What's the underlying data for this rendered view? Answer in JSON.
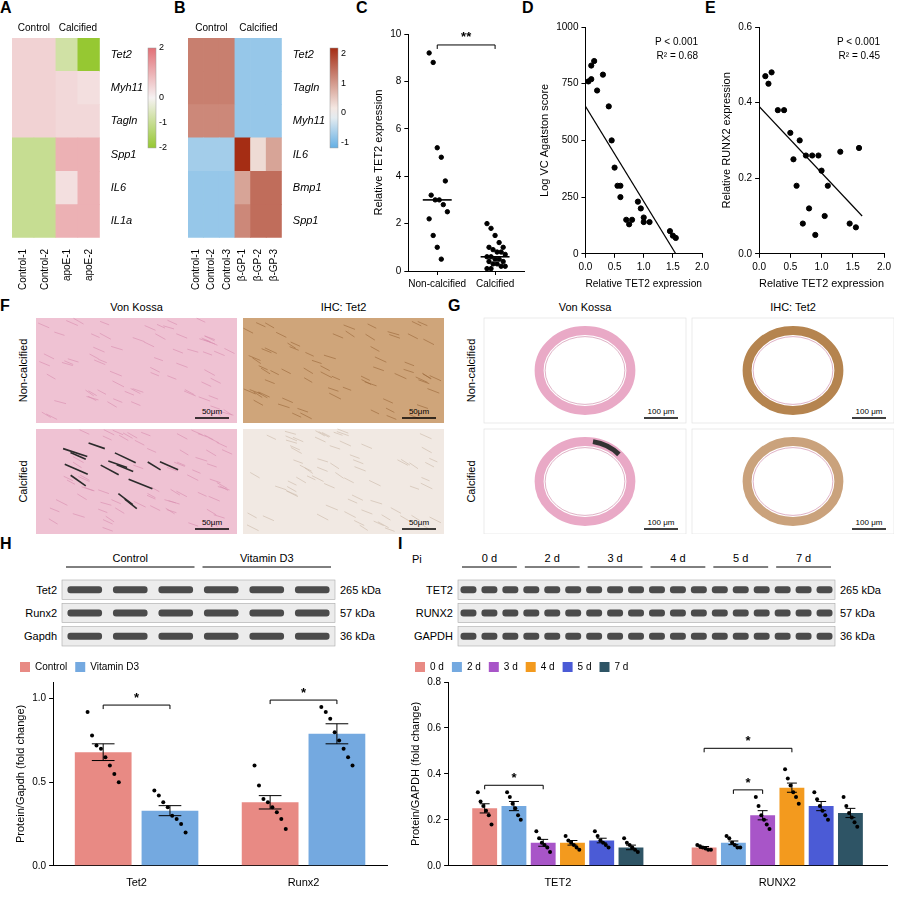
{
  "chart_data": [
    {
      "panel": "A",
      "type": "heatmap",
      "column_groups": [
        "Control",
        "Calcified"
      ],
      "categories": [
        "Control-1",
        "Control-2",
        "apoE-1",
        "apoE-2"
      ],
      "rows": [
        "Tet2",
        "Myh11",
        "Tagln",
        "Spp1",
        "IL6",
        "IL1a"
      ],
      "cells": [
        [
          0.5,
          0.5,
          -0.8,
          -2
        ],
        [
          0.5,
          0.5,
          0.4,
          0.3
        ],
        [
          0.5,
          0.5,
          0.4,
          0.4
        ],
        [
          -1,
          -1,
          1,
          1
        ],
        [
          -1,
          -1,
          0.3,
          1
        ],
        [
          -1,
          -1,
          1,
          1
        ]
      ],
      "colorbar": {
        "lim": [
          -2,
          2
        ],
        "ticks": [
          2,
          0,
          -1,
          -2
        ]
      }
    },
    {
      "panel": "B",
      "type": "heatmap",
      "column_groups": [
        "Control",
        "Calcified"
      ],
      "categories": [
        "Control-1",
        "Control-2",
        "Control-3",
        "β-GP-1",
        "β-GP-2",
        "β-GP-3"
      ],
      "rows": [
        "Tet2",
        "Tagln",
        "Myh11",
        "IL6",
        "Bmp1",
        "Spp1"
      ],
      "cells": [
        [
          1.3,
          1.3,
          1.3,
          -0.8,
          -0.8,
          -0.8
        ],
        [
          1.3,
          1.3,
          1.3,
          -0.8,
          -0.8,
          -0.8
        ],
        [
          1.2,
          1.2,
          1.2,
          -0.8,
          -0.8,
          -0.8
        ],
        [
          -0.7,
          -0.7,
          -0.7,
          2.2,
          0.3,
          0.9
        ],
        [
          -0.8,
          -0.8,
          -0.8,
          0.9,
          1.5,
          1.5
        ],
        [
          -0.8,
          -0.8,
          -0.8,
          1.2,
          1.5,
          1.5
        ]
      ],
      "colorbar": {
        "lim": [
          -1.2,
          2.2
        ],
        "ticks": [
          2,
          1,
          0,
          -1
        ]
      }
    },
    {
      "panel": "C",
      "type": "dot",
      "categories": [
        "Non-calcified",
        "Calcified"
      ],
      "values": [
        [
          9.2,
          8.8,
          5.2,
          4.8,
          3.8,
          3.2,
          3.0,
          3.0,
          2.8,
          2.5,
          2.2,
          1.5,
          1.0,
          0.5
        ],
        [
          2.0,
          1.8,
          1.5,
          1.2,
          1.0,
          1.0,
          0.9,
          0.8,
          0.8,
          0.7,
          0.6,
          0.6,
          0.5,
          0.5,
          0.4,
          0.4,
          0.3,
          0.3,
          0.2,
          0.2,
          0.1,
          0.1
        ]
      ],
      "medians": [
        3.0,
        0.6
      ],
      "ylim": [
        0,
        10
      ],
      "yticks": [
        0,
        2,
        4,
        6,
        8,
        10
      ],
      "y_label": "Relative TET2 expression",
      "grid": false,
      "annotations": [
        {
          "text": "**",
          "between": [
            0,
            1
          ]
        }
      ]
    },
    {
      "panel": "D",
      "type": "scatter",
      "x": [
        0.05,
        0.1,
        0.1,
        0.15,
        0.2,
        0.3,
        0.4,
        0.45,
        0.5,
        0.55,
        0.6,
        0.6,
        0.7,
        0.75,
        0.8,
        0.9,
        0.95,
        1.0,
        1.0,
        1.1,
        1.45,
        1.5,
        1.55
      ],
      "values": [
        760,
        770,
        830,
        850,
        720,
        790,
        650,
        500,
        380,
        300,
        300,
        250,
        150,
        130,
        150,
        230,
        200,
        160,
        140,
        140,
        100,
        80,
        70
      ],
      "fit_line": {
        "x": [
          0,
          1.55
        ],
        "values": [
          650,
          0
        ]
      },
      "xlim": [
        0,
        2
      ],
      "xticks": [
        {
          "value": 0,
          "label": "0.0"
        },
        0.5,
        {
          "value": 1,
          "label": "1.0"
        },
        1.5,
        {
          "value": 2,
          "label": "2.0"
        }
      ],
      "ylim": [
        0,
        1000
      ],
      "yticks": [
        0,
        250,
        500,
        750,
        1000
      ],
      "x_label": "Relative TET2 expression",
      "y_label": "Log VC Agatston score",
      "grid": false,
      "annotations": [
        "P < 0.001",
        "R² = 0.68"
      ]
    },
    {
      "panel": "E",
      "type": "scatter",
      "x": [
        0.1,
        0.15,
        0.2,
        0.3,
        0.4,
        0.5,
        0.55,
        0.6,
        0.65,
        0.7,
        0.75,
        0.8,
        0.85,
        0.9,
        0.95,
        1.0,
        1.05,
        1.1,
        1.3,
        1.45,
        1.55,
        1.6
      ],
      "values": [
        0.47,
        0.45,
        0.48,
        0.38,
        0.38,
        0.32,
        0.25,
        0.18,
        0.3,
        0.08,
        0.26,
        0.12,
        0.26,
        0.05,
        0.26,
        0.22,
        0.1,
        0.18,
        0.27,
        0.08,
        0.07,
        0.28
      ],
      "fit_line": {
        "x": [
          0,
          1.65
        ],
        "values": [
          0.39,
          0.1
        ]
      },
      "xlim": [
        0,
        2
      ],
      "xticks": [
        {
          "value": 0,
          "label": "0.0"
        },
        0.5,
        {
          "value": 1,
          "label": "1.0"
        },
        1.5,
        {
          "value": 2,
          "label": "2.0"
        }
      ],
      "ylim": [
        0,
        0.6
      ],
      "yticks": [
        {
          "value": 0,
          "label": "0.0"
        },
        0.2,
        0.4,
        0.6
      ],
      "x_label": "Relative TET2 expression",
      "y_label": "Relative RUNX2 expression",
      "grid": false,
      "annotations": [
        "P < 0.001",
        "R² = 0.45"
      ]
    },
    {
      "panel": "H",
      "type": "bar",
      "categories": [
        "Tet2",
        "Runx2"
      ],
      "series": [
        {
          "name": "Control",
          "color": "#E88A84",
          "values": [
            0.68,
            0.38
          ],
          "errors": [
            0.05,
            0.04
          ],
          "points": [
            [
              0.92,
              0.78,
              0.72,
              0.7,
              0.65,
              0.6,
              0.55,
              0.5
            ],
            [
              0.6,
              0.48,
              0.4,
              0.38,
              0.35,
              0.32,
              0.28,
              0.22
            ]
          ]
        },
        {
          "name": "Vitamin D3",
          "color": "#74A9E0",
          "values": [
            0.33,
            0.79
          ],
          "errors": [
            0.03,
            0.06
          ],
          "points": [
            [
              0.45,
              0.42,
              0.38,
              0.35,
              0.3,
              0.28,
              0.25,
              0.2
            ],
            [
              0.95,
              0.92,
              0.88,
              0.8,
              0.75,
              0.7,
              0.65,
              0.6
            ]
          ]
        }
      ],
      "ylim": [
        0,
        1.1
      ],
      "yticks": [
        {
          "value": 0,
          "label": "0.0"
        },
        0.5,
        {
          "value": 1,
          "label": "1.0"
        }
      ],
      "y_label": "Protein/Gapdh (fold change)",
      "legend": "top",
      "grid": false,
      "annotations": [
        {
          "text": "*",
          "category": 0,
          "between": [
            0,
            1
          ]
        },
        {
          "text": "*",
          "category": 1,
          "between": [
            0,
            1
          ]
        }
      ],
      "blot": {
        "groups": [
          "Control",
          "Vitamin D3"
        ],
        "rows": [
          "Tet2",
          "Runx2",
          "Gapdh"
        ],
        "sizes": [
          "265 kDa",
          "57 kDa",
          "36 kDa"
        ]
      }
    },
    {
      "panel": "I",
      "type": "bar",
      "categories": [
        "TET2",
        "RUNX2"
      ],
      "series": [
        {
          "name": "0 d",
          "color": "#E88A84",
          "values": [
            0.25,
            0.08
          ],
          "errors": [
            0.02,
            0.004
          ],
          "points": [
            [
              0.32,
              0.28,
              0.26,
              0.24,
              0.22,
              0.18
            ],
            [
              0.09,
              0.085,
              0.08,
              0.075,
              0.07,
              0.07
            ]
          ]
        },
        {
          "name": "2 d",
          "color": "#74A9E0",
          "values": [
            0.26,
            0.1
          ],
          "errors": [
            0.02,
            0.008
          ],
          "points": [
            [
              0.32,
              0.3,
              0.27,
              0.25,
              0.22,
              0.2
            ],
            [
              0.13,
              0.12,
              0.1,
              0.09,
              0.08,
              0.08
            ]
          ]
        },
        {
          "name": "3 d",
          "color": "#A855C8",
          "values": [
            0.1,
            0.22
          ],
          "errors": [
            0.015,
            0.02
          ],
          "points": [
            [
              0.15,
              0.12,
              0.1,
              0.09,
              0.08,
              0.06
            ],
            [
              0.3,
              0.26,
              0.22,
              0.2,
              0.18,
              0.16
            ]
          ]
        },
        {
          "name": "4 d",
          "color": "#F39A1E",
          "values": [
            0.1,
            0.34
          ],
          "errors": [
            0.01,
            0.02
          ],
          "points": [
            [
              0.13,
              0.11,
              0.1,
              0.09,
              0.08,
              0.07
            ],
            [
              0.42,
              0.38,
              0.35,
              0.32,
              0.3,
              0.27
            ]
          ]
        },
        {
          "name": "5 d",
          "color": "#4B5BD6",
          "values": [
            0.11,
            0.26
          ],
          "errors": [
            0.01,
            0.02
          ],
          "points": [
            [
              0.15,
              0.13,
              0.11,
              0.1,
              0.09,
              0.08
            ],
            [
              0.32,
              0.29,
              0.26,
              0.24,
              0.22,
              0.2
            ]
          ]
        },
        {
          "name": "7 d",
          "color": "#2E5465",
          "values": [
            0.08,
            0.23
          ],
          "errors": [
            0.01,
            0.02
          ],
          "points": [
            [
              0.12,
              0.1,
              0.09,
              0.08,
              0.07,
              0.06
            ],
            [
              0.3,
              0.26,
              0.23,
              0.21,
              0.19,
              0.17
            ]
          ]
        }
      ],
      "ylim": [
        0,
        0.8
      ],
      "yticks": [
        {
          "value": 0,
          "label": "0.0"
        },
        0.2,
        0.4,
        0.6,
        0.8
      ],
      "y_label": "Protein/GAPDH (fold change)",
      "legend": "top",
      "grid": false,
      "annotations": [
        {
          "text": "*",
          "category": 0,
          "between": [
            0,
            2
          ]
        },
        {
          "text": "*",
          "category": 1,
          "between": [
            1,
            2
          ]
        },
        {
          "text": "*",
          "category": 1,
          "between": [
            0,
            3
          ]
        }
      ],
      "blot": {
        "treatment": "Pi",
        "groups": [
          "0 d",
          "2 d",
          "3 d",
          "4 d",
          "5 d",
          "7 d"
        ],
        "rows": [
          "TET2",
          "RUNX2",
          "GAPDH"
        ],
        "sizes": [
          "265 kDa",
          "57 kDa",
          "36 kDa"
        ]
      }
    }
  ],
  "images": [
    {
      "panel": "F",
      "columns": [
        "Von Kossa",
        "IHC: Tet2"
      ],
      "rows": [
        "Non-calcified",
        "Calcified"
      ],
      "scale_bar": "50μm"
    },
    {
      "panel": "G",
      "columns": [
        "Von Kossa",
        "IHC: Tet2"
      ],
      "rows": [
        "Non-calcified",
        "Calcified"
      ],
      "scale_bar": "100 μm"
    }
  ]
}
